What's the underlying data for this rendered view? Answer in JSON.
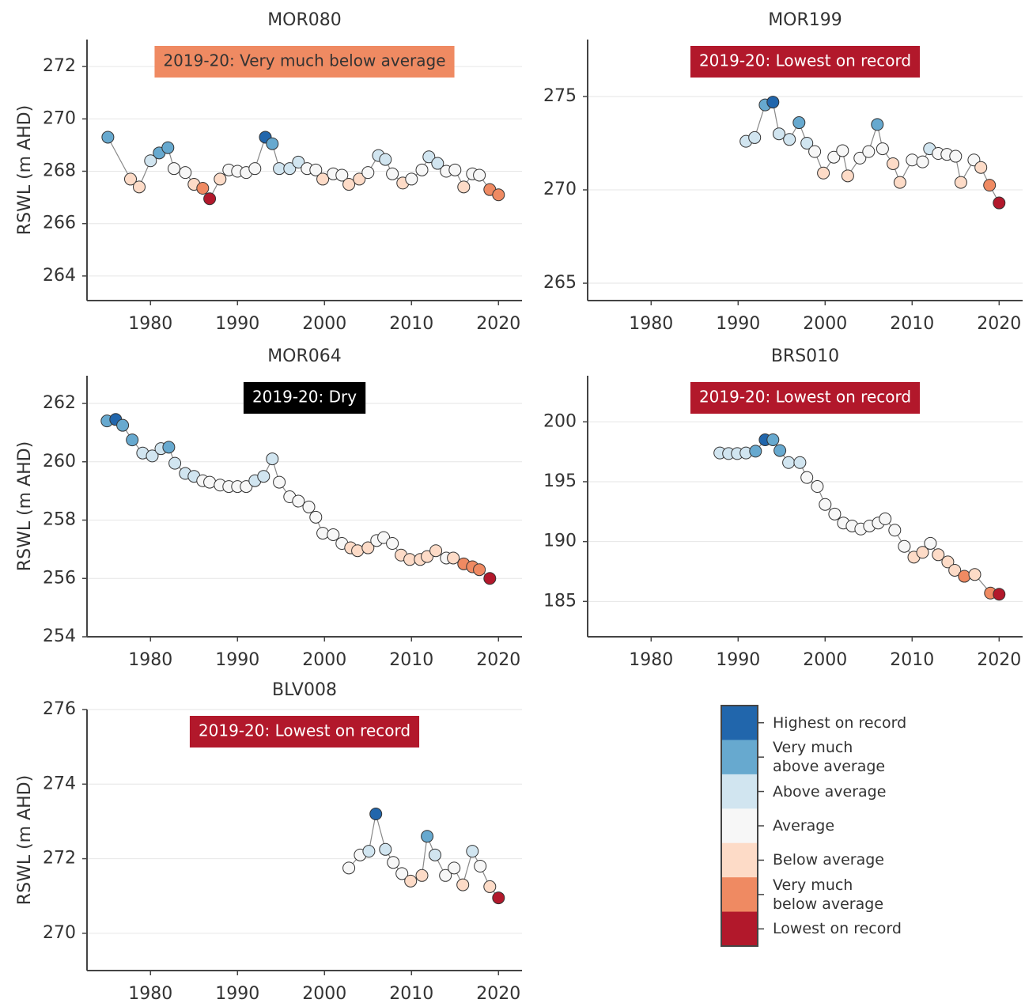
{
  "chart_data": [
    {
      "type": "scatter",
      "title": "MOR080",
      "y_label": "RSWL (m AHD)",
      "annotation": "2019-20: Very much below average",
      "annotation_color": "#ef8a62",
      "annotation_text_color": "#333333",
      "line_color": "#888888",
      "xlim": [
        1972.7,
        2022.7
      ],
      "xticks": [
        1980,
        1990,
        2000,
        2010,
        2020
      ],
      "ylim": [
        263.06,
        273.03
      ],
      "yticks": [
        264,
        266,
        268,
        270,
        272
      ],
      "x": [
        1975.1,
        1977.7,
        1978.7,
        1980,
        1981,
        1982,
        1982.7,
        1984,
        1985,
        1986,
        1986.8,
        1988,
        1989,
        1990,
        1991,
        1992,
        1993.2,
        1994,
        1994.8,
        1996,
        1997,
        1998,
        1999,
        1999.8,
        2001,
        2002,
        2002.8,
        2004,
        2005,
        2006.2,
        2007,
        2007.8,
        2009,
        2010,
        2011.2,
        2012,
        2013,
        2014,
        2015,
        2016,
        2017,
        2017.8,
        2019,
        2020
      ],
      "values": [
        269.3,
        267.7,
        267.4,
        268.4,
        268.7,
        268.9,
        268.1,
        267.95,
        267.5,
        267.35,
        266.95,
        267.7,
        268.05,
        268.0,
        267.95,
        268.1,
        269.3,
        269.05,
        268.1,
        268.1,
        268.35,
        268.1,
        268.05,
        267.7,
        267.9,
        267.85,
        267.5,
        267.7,
        267.95,
        268.6,
        268.45,
        267.9,
        267.55,
        267.7,
        268.05,
        268.55,
        268.3,
        268.0,
        268.05,
        267.4,
        267.9,
        267.85,
        267.3,
        267.1
      ],
      "colors": [
        "#67a9cf",
        "#fddbc7",
        "#fddbc7",
        "#d1e5f0",
        "#67a9cf",
        "#67a9cf",
        "#f7f7f7",
        "#f7f7f7",
        "#fddbc7",
        "#ef8a62",
        "#b2182b",
        "#fddbc7",
        "#f7f7f7",
        "#f7f7f7",
        "#f7f7f7",
        "#f7f7f7",
        "#2166ac",
        "#67a9cf",
        "#d1e5f0",
        "#d1e5f0",
        "#d1e5f0",
        "#f7f7f7",
        "#f7f7f7",
        "#fddbc7",
        "#f7f7f7",
        "#f7f7f7",
        "#fddbc7",
        "#fddbc7",
        "#f7f7f7",
        "#d1e5f0",
        "#d1e5f0",
        "#f7f7f7",
        "#fddbc7",
        "#f7f7f7",
        "#f7f7f7",
        "#d1e5f0",
        "#d1e5f0",
        "#f7f7f7",
        "#f7f7f7",
        "#fddbc7",
        "#f7f7f7",
        "#f7f7f7",
        "#ef8a62",
        "#ef8a62"
      ]
    },
    {
      "type": "scatter",
      "title": "MOR199",
      "annotation": "2019-20: Lowest on record",
      "annotation_color": "#b2182b",
      "annotation_text_color": "#ffffff",
      "line_color": "#888888",
      "xlim": [
        1972.7,
        2022.7
      ],
      "xticks": [
        1980,
        1990,
        2000,
        2010,
        2020
      ],
      "ylim": [
        264.07,
        278.05
      ],
      "yticks": [
        265,
        270,
        275
      ],
      "x": [
        1990.9,
        1991.9,
        1993.1,
        1994,
        1994.7,
        1995.9,
        1997,
        1997.9,
        1998.8,
        1999.8,
        2001,
        2002,
        2002.6,
        2004,
        2005,
        2006,
        2006.6,
        2007.8,
        2008.6,
        2010,
        2011.2,
        2012,
        2013,
        2014,
        2015,
        2015.6,
        2017.1,
        2017.9,
        2018.9,
        2020
      ],
      "values": [
        272.6,
        272.8,
        274.55,
        274.7,
        273.0,
        272.7,
        273.6,
        272.5,
        272.05,
        270.9,
        271.75,
        272.1,
        270.75,
        271.7,
        272.05,
        273.5,
        272.2,
        271.4,
        270.4,
        271.6,
        271.5,
        272.2,
        271.95,
        271.9,
        271.8,
        270.4,
        271.6,
        271.2,
        270.25,
        269.3
      ],
      "colors": [
        "#d1e5f0",
        "#d1e5f0",
        "#67a9cf",
        "#2166ac",
        "#d1e5f0",
        "#d1e5f0",
        "#67a9cf",
        "#d1e5f0",
        "#f7f7f7",
        "#fddbc7",
        "#f7f7f7",
        "#f7f7f7",
        "#fddbc7",
        "#f7f7f7",
        "#f7f7f7",
        "#67a9cf",
        "#f7f7f7",
        "#fddbc7",
        "#fddbc7",
        "#f7f7f7",
        "#f7f7f7",
        "#d1e5f0",
        "#f7f7f7",
        "#f7f7f7",
        "#f7f7f7",
        "#fddbc7",
        "#f7f7f7",
        "#fddbc7",
        "#ef8a62",
        "#b2182b"
      ]
    },
    {
      "type": "scatter",
      "title": "MOR064",
      "y_label": "RSWL (m AHD)",
      "annotation": "2019-20: Dry",
      "annotation_color": "#000000",
      "annotation_text_color": "#ffffff",
      "line_color": "#888888",
      "xlim": [
        1972.7,
        2022.7
      ],
      "xticks": [
        1980,
        1990,
        2000,
        2010,
        2020
      ],
      "ylim": [
        254,
        262.95
      ],
      "yticks": [
        254,
        256,
        258,
        260,
        262
      ],
      "x": [
        1975,
        1976,
        1976.8,
        1977.9,
        1979.1,
        1980.2,
        1981.2,
        1982.1,
        1982.8,
        1984,
        1985,
        1986,
        1986.8,
        1988,
        1989,
        1990,
        1991,
        1992,
        1993,
        1994,
        1994.8,
        1996,
        1997,
        1998.2,
        1999,
        1999.8,
        2001,
        2002,
        2003,
        2003.8,
        2005,
        2006,
        2006.8,
        2007.8,
        2008.8,
        2009.8,
        2011,
        2011.8,
        2012.8,
        2014,
        2014.8,
        2016,
        2017,
        2017.8,
        2019
      ],
      "values": [
        261.4,
        261.45,
        261.25,
        260.75,
        260.3,
        260.2,
        260.45,
        260.5,
        259.95,
        259.6,
        259.5,
        259.35,
        259.3,
        259.2,
        259.15,
        259.15,
        259.15,
        259.35,
        259.5,
        260.1,
        259.3,
        258.8,
        258.65,
        258.45,
        258.1,
        257.55,
        257.5,
        257.2,
        257.05,
        256.95,
        257.05,
        257.3,
        257.4,
        257.2,
        256.8,
        256.65,
        256.65,
        256.75,
        256.95,
        256.7,
        256.7,
        256.5,
        256.4,
        256.3,
        256.0
      ],
      "colors": [
        "#67a9cf",
        "#2166ac",
        "#67a9cf",
        "#67a9cf",
        "#d1e5f0",
        "#d1e5f0",
        "#d1e5f0",
        "#67a9cf",
        "#d1e5f0",
        "#d1e5f0",
        "#d1e5f0",
        "#f7f7f7",
        "#f7f7f7",
        "#f7f7f7",
        "#f7f7f7",
        "#f7f7f7",
        "#f7f7f7",
        "#d1e5f0",
        "#d1e5f0",
        "#d1e5f0",
        "#f7f7f7",
        "#f7f7f7",
        "#f7f7f7",
        "#f7f7f7",
        "#f7f7f7",
        "#f7f7f7",
        "#f7f7f7",
        "#f7f7f7",
        "#fddbc7",
        "#fddbc7",
        "#fddbc7",
        "#f7f7f7",
        "#f7f7f7",
        "#f7f7f7",
        "#fddbc7",
        "#fddbc7",
        "#fddbc7",
        "#fddbc7",
        "#fddbc7",
        "#f7f7f7",
        "#fddbc7",
        "#ef8a62",
        "#ef8a62",
        "#ef8a62",
        "#b2182b"
      ]
    },
    {
      "type": "scatter",
      "title": "BRS010",
      "annotation": "2019-20: Lowest on record",
      "annotation_color": "#b2182b",
      "annotation_text_color": "#ffffff",
      "line_color": "#888888",
      "xlim": [
        1972.7,
        2022.7
      ],
      "xticks": [
        1980,
        1990,
        2000,
        2010,
        2020
      ],
      "ylim": [
        182.05,
        203.85
      ],
      "yticks": [
        185,
        190,
        195,
        200
      ],
      "x": [
        1987.9,
        1988.9,
        1989.9,
        1990.9,
        1992,
        1993.1,
        1994,
        1994.8,
        1995.8,
        1997.1,
        1997.9,
        1999.1,
        2000,
        2001.1,
        2002.1,
        2003.1,
        2004.1,
        2005.1,
        2006.1,
        2006.9,
        2008,
        2009.1,
        2010.2,
        2011.2,
        2012.1,
        2013,
        2014.1,
        2014.9,
        2016,
        2017.2,
        2019,
        2020
      ],
      "values": [
        197.4,
        197.35,
        197.35,
        197.4,
        197.55,
        198.5,
        198.5,
        197.6,
        196.6,
        196.6,
        195.35,
        194.6,
        193.1,
        192.3,
        191.55,
        191.3,
        191.05,
        191.3,
        191.55,
        191.9,
        190.95,
        189.6,
        188.7,
        189.1,
        189.85,
        188.9,
        188.3,
        187.6,
        187.1,
        187.25,
        185.7,
        185.6
      ],
      "colors": [
        "#d1e5f0",
        "#d1e5f0",
        "#d1e5f0",
        "#d1e5f0",
        "#67a9cf",
        "#2166ac",
        "#67a9cf",
        "#67a9cf",
        "#d1e5f0",
        "#d1e5f0",
        "#f7f7f7",
        "#f7f7f7",
        "#f7f7f7",
        "#f7f7f7",
        "#f7f7f7",
        "#f7f7f7",
        "#f7f7f7",
        "#f7f7f7",
        "#f7f7f7",
        "#f7f7f7",
        "#f7f7f7",
        "#f7f7f7",
        "#fddbc7",
        "#fddbc7",
        "#f7f7f7",
        "#fddbc7",
        "#fddbc7",
        "#fddbc7",
        "#ef8a62",
        "#fddbc7",
        "#ef8a62",
        "#b2182b"
      ]
    },
    {
      "type": "scatter",
      "title": "BLV008",
      "y_label": "RSWL (m AHD)",
      "annotation": "2019-20: Lowest on record",
      "annotation_color": "#b2182b",
      "annotation_text_color": "#ffffff",
      "line_color": "#888888",
      "xlim": [
        1972.7,
        2022.7
      ],
      "xticks": [
        1980,
        1990,
        2000,
        2010,
        2020
      ],
      "ylim": [
        269.0,
        276
      ],
      "yticks": [
        270,
        272,
        274,
        276
      ],
      "x": [
        2002.8,
        2004.1,
        2005.1,
        2005.9,
        2007,
        2007.9,
        2008.9,
        2009.9,
        2011.2,
        2011.8,
        2012.7,
        2013.9,
        2014.9,
        2015.9,
        2017,
        2017.9,
        2019,
        2020
      ],
      "values": [
        271.75,
        272.1,
        272.2,
        273.2,
        272.25,
        271.9,
        271.6,
        271.4,
        271.55,
        272.6,
        272.1,
        271.55,
        271.75,
        271.3,
        272.2,
        271.8,
        271.25,
        270.95
      ],
      "colors": [
        "#f7f7f7",
        "#f7f7f7",
        "#d1e5f0",
        "#2166ac",
        "#d1e5f0",
        "#f7f7f7",
        "#f7f7f7",
        "#fddbc7",
        "#fddbc7",
        "#67a9cf",
        "#d1e5f0",
        "#f7f7f7",
        "#f7f7f7",
        "#fddbc7",
        "#d1e5f0",
        "#f7f7f7",
        "#fddbc7",
        "#b2182b"
      ]
    }
  ],
  "legend": {
    "labels": [
      "Highest on record",
      "Very much\nabove average",
      "Above average",
      "Average",
      "Below average",
      "Very much\nbelow average",
      "Lowest on record"
    ],
    "colors": [
      "#2166ac",
      "#67a9cf",
      "#d1e5f0",
      "#f7f7f7",
      "#fddbc7",
      "#ef8a62",
      "#b2182b"
    ]
  }
}
